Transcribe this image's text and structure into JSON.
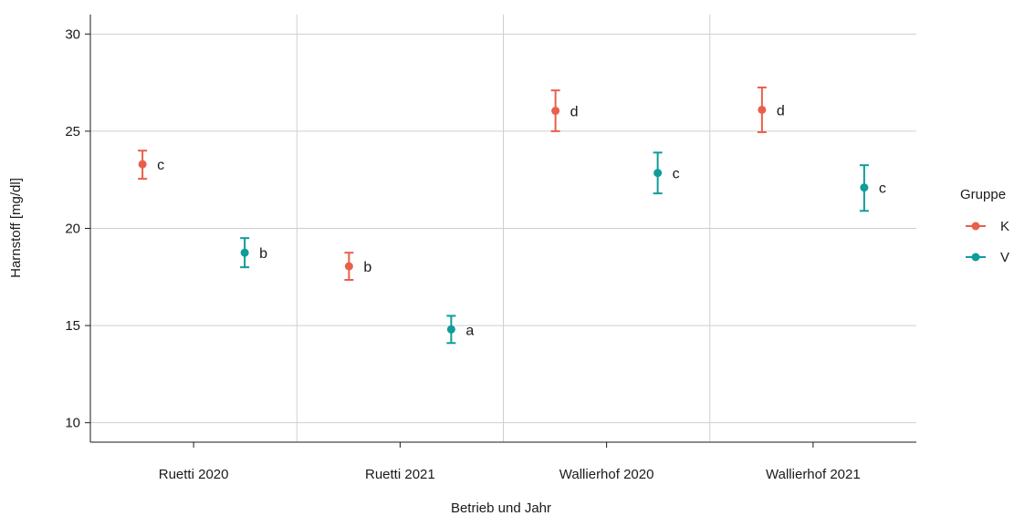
{
  "chart_data": {
    "type": "scatter",
    "xlabel": "Betrieb und Jahr",
    "ylabel": "Harnstoff [mg/dl]",
    "categories": [
      "Ruetti 2020",
      "Ruetti 2021",
      "Wallierhof 2020",
      "Wallierhof 2021"
    ],
    "yticks": [
      10,
      15,
      20,
      25,
      30
    ],
    "ylim": [
      9.0,
      31.0
    ],
    "grid": true,
    "legend": {
      "title": "Gruppe",
      "position": "right"
    },
    "series": [
      {
        "name": "K",
        "color": "#e8604c",
        "values": [
          23.3,
          18.05,
          26.05,
          26.1
        ],
        "lower": [
          22.55,
          17.35,
          25.0,
          24.95
        ],
        "upper": [
          24.0,
          18.75,
          27.1,
          27.25
        ],
        "letters": [
          "c",
          "b",
          "d",
          "d"
        ]
      },
      {
        "name": "V",
        "color": "#0f9c9a",
        "values": [
          18.75,
          14.8,
          22.85,
          22.1
        ],
        "lower": [
          18.0,
          14.1,
          21.8,
          20.9
        ],
        "upper": [
          19.5,
          15.5,
          23.9,
          23.25
        ],
        "letters": [
          "b",
          "a",
          "c",
          "c"
        ]
      }
    ]
  }
}
